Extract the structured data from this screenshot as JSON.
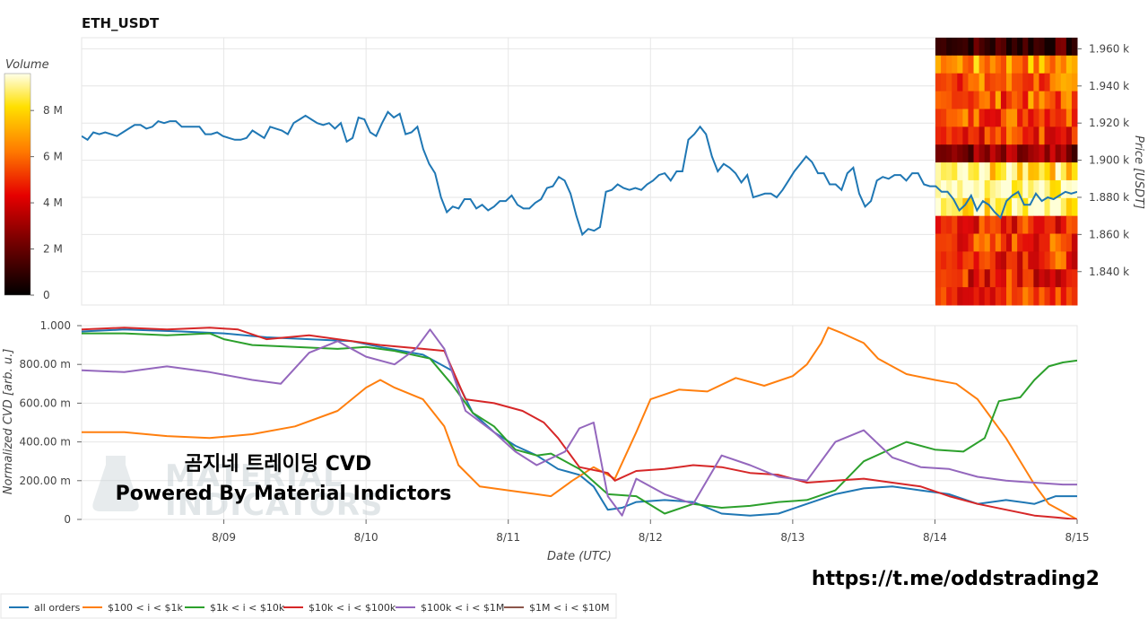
{
  "chart_data": {
    "title": "ETH_USDT",
    "colorbar": {
      "title": "Volume",
      "ticks": [
        "0",
        "2 M",
        "4 M",
        "6 M",
        "8 M"
      ],
      "tick_values": [
        0,
        2,
        4,
        6,
        8
      ],
      "max": 9.6
    },
    "price_panel": {
      "type": "line",
      "ylabel": "Price [USDT]",
      "ylim": [
        1.822,
        1.966
      ],
      "yticks": [
        "1.840 k",
        "1.860 k",
        "1.880 k",
        "1.900 k",
        "1.920 k",
        "1.940 k",
        "1.960 k"
      ],
      "ytick_values": [
        1.84,
        1.86,
        1.88,
        1.9,
        1.92,
        1.94,
        1.96
      ],
      "price": [
        1.913,
        1.911,
        1.915,
        1.914,
        1.915,
        1.914,
        1.913,
        1.915,
        1.917,
        1.919,
        1.919,
        1.917,
        1.918,
        1.921,
        1.92,
        1.921,
        1.921,
        1.918,
        1.918,
        1.918,
        1.918,
        1.914,
        1.914,
        1.915,
        1.913,
        1.912,
        1.911,
        1.911,
        1.912,
        1.916,
        1.914,
        1.912,
        1.918,
        1.917,
        1.916,
        1.914,
        1.92,
        1.922,
        1.924,
        1.922,
        1.92,
        1.919,
        1.92,
        1.917,
        1.92,
        1.91,
        1.912,
        1.923,
        1.922,
        1.915,
        1.913,
        1.92,
        1.926,
        1.923,
        1.925,
        1.914,
        1.915,
        1.918,
        1.906,
        1.898,
        1.893,
        1.88,
        1.872,
        1.875,
        1.874,
        1.879,
        1.879,
        1.874,
        1.876,
        1.873,
        1.875,
        1.878,
        1.878,
        1.881,
        1.876,
        1.874,
        1.874,
        1.877,
        1.879,
        1.885,
        1.886,
        1.891,
        1.889,
        1.882,
        1.87,
        1.86,
        1.863,
        1.862,
        1.864,
        1.883,
        1.884,
        1.887,
        1.885,
        1.884,
        1.885,
        1.884,
        1.887,
        1.889,
        1.892,
        1.893,
        1.889,
        1.894,
        1.894,
        1.911,
        1.914,
        1.918,
        1.914,
        1.902,
        1.894,
        1.898,
        1.896,
        1.893,
        1.888,
        1.892,
        1.88,
        1.881,
        1.882,
        1.882,
        1.88,
        1.884,
        1.889,
        1.894,
        1.898,
        1.902,
        1.899,
        1.893,
        1.893,
        1.887,
        1.887,
        1.884,
        1.893,
        1.896,
        1.882,
        1.875,
        1.878,
        1.889,
        1.891,
        1.89,
        1.892,
        1.892,
        1.889,
        1.893,
        1.893,
        1.887,
        1.886,
        1.886,
        1.883,
        1.883,
        1.879,
        1.873,
        1.876,
        1.881,
        1.873,
        1.878,
        1.876,
        1.872,
        1.869,
        1.878,
        1.881,
        1.883,
        1.876,
        1.876,
        1.882,
        1.878,
        1.88,
        1.879,
        1.881,
        1.883,
        1.882,
        1.883
      ]
    },
    "cvd_panel": {
      "type": "line",
      "ylabel": "Normalized CVD [arb. u.]",
      "xlabel": "Date (UTC)",
      "ylim": [
        0,
        1.0
      ],
      "yticks": [
        "0",
        "200.00 m",
        "400.00 m",
        "600.00 m",
        "800.00 m",
        "1.000"
      ],
      "ytick_values": [
        0,
        0.2,
        0.4,
        0.6,
        0.8,
        1.0
      ],
      "xlim": [
        0,
        7
      ],
      "xticks": [
        "8/09",
        "8/10",
        "8/11",
        "8/12",
        "8/13",
        "8/14",
        "8/15"
      ],
      "xtick_values": [
        1,
        2,
        3,
        4,
        5,
        6,
        7
      ],
      "series": [
        {
          "name": "all orders",
          "color": "#1f77b4",
          "points": [
            [
              0,
              0.97
            ],
            [
              0.3,
              0.98
            ],
            [
              0.7,
              0.97
            ],
            [
              1.0,
              0.96
            ],
            [
              1.3,
              0.94
            ],
            [
              1.6,
              0.93
            ],
            [
              1.9,
              0.92
            ],
            [
              2.1,
              0.89
            ],
            [
              2.4,
              0.85
            ],
            [
              2.6,
              0.77
            ],
            [
              2.75,
              0.55
            ],
            [
              2.9,
              0.45
            ],
            [
              3.05,
              0.38
            ],
            [
              3.2,
              0.33
            ],
            [
              3.35,
              0.26
            ],
            [
              3.5,
              0.23
            ],
            [
              3.6,
              0.17
            ],
            [
              3.7,
              0.05
            ],
            [
              3.8,
              0.06
            ],
            [
              3.9,
              0.09
            ],
            [
              4.1,
              0.1
            ],
            [
              4.3,
              0.09
            ],
            [
              4.5,
              0.03
            ],
            [
              4.7,
              0.02
            ],
            [
              4.9,
              0.03
            ],
            [
              5.1,
              0.08
            ],
            [
              5.3,
              0.13
            ],
            [
              5.5,
              0.16
            ],
            [
              5.7,
              0.17
            ],
            [
              5.9,
              0.15
            ],
            [
              6.1,
              0.13
            ],
            [
              6.3,
              0.08
            ],
            [
              6.5,
              0.1
            ],
            [
              6.7,
              0.08
            ],
            [
              6.85,
              0.12
            ],
            [
              7.0,
              0.12
            ]
          ]
        },
        {
          "name": "$100 < i < $1k",
          "color": "#ff7f0e",
          "points": [
            [
              0,
              0.45
            ],
            [
              0.3,
              0.45
            ],
            [
              0.6,
              0.43
            ],
            [
              0.9,
              0.42
            ],
            [
              1.2,
              0.44
            ],
            [
              1.5,
              0.48
            ],
            [
              1.8,
              0.56
            ],
            [
              2.0,
              0.68
            ],
            [
              2.1,
              0.72
            ],
            [
              2.2,
              0.68
            ],
            [
              2.4,
              0.62
            ],
            [
              2.55,
              0.48
            ],
            [
              2.65,
              0.28
            ],
            [
              2.8,
              0.17
            ],
            [
              3.0,
              0.15
            ],
            [
              3.2,
              0.13
            ],
            [
              3.3,
              0.12
            ],
            [
              3.45,
              0.2
            ],
            [
              3.6,
              0.27
            ],
            [
              3.75,
              0.21
            ],
            [
              3.9,
              0.45
            ],
            [
              4.0,
              0.62
            ],
            [
              4.2,
              0.67
            ],
            [
              4.4,
              0.66
            ],
            [
              4.6,
              0.73
            ],
            [
              4.8,
              0.69
            ],
            [
              5.0,
              0.74
            ],
            [
              5.1,
              0.8
            ],
            [
              5.2,
              0.91
            ],
            [
              5.25,
              0.99
            ],
            [
              5.35,
              0.96
            ],
            [
              5.5,
              0.91
            ],
            [
              5.6,
              0.83
            ],
            [
              5.8,
              0.75
            ],
            [
              6.0,
              0.72
            ],
            [
              6.15,
              0.7
            ],
            [
              6.3,
              0.62
            ],
            [
              6.5,
              0.42
            ],
            [
              6.7,
              0.18
            ],
            [
              6.8,
              0.08
            ],
            [
              7.0,
              0.0
            ]
          ]
        },
        {
          "name": "$1k < i < $10k",
          "color": "#2ca02c",
          "points": [
            [
              0,
              0.96
            ],
            [
              0.3,
              0.96
            ],
            [
              0.6,
              0.95
            ],
            [
              0.9,
              0.96
            ],
            [
              1.0,
              0.93
            ],
            [
              1.2,
              0.9
            ],
            [
              1.5,
              0.89
            ],
            [
              1.8,
              0.88
            ],
            [
              2.0,
              0.89
            ],
            [
              2.2,
              0.87
            ],
            [
              2.45,
              0.83
            ],
            [
              2.6,
              0.7
            ],
            [
              2.75,
              0.55
            ],
            [
              2.9,
              0.48
            ],
            [
              3.05,
              0.36
            ],
            [
              3.2,
              0.33
            ],
            [
              3.3,
              0.34
            ],
            [
              3.5,
              0.26
            ],
            [
              3.7,
              0.13
            ],
            [
              3.9,
              0.12
            ],
            [
              4.1,
              0.03
            ],
            [
              4.3,
              0.08
            ],
            [
              4.5,
              0.06
            ],
            [
              4.7,
              0.07
            ],
            [
              4.9,
              0.09
            ],
            [
              5.1,
              0.1
            ],
            [
              5.3,
              0.15
            ],
            [
              5.5,
              0.3
            ],
            [
              5.65,
              0.35
            ],
            [
              5.8,
              0.4
            ],
            [
              6.0,
              0.36
            ],
            [
              6.2,
              0.35
            ],
            [
              6.35,
              0.42
            ],
            [
              6.45,
              0.61
            ],
            [
              6.6,
              0.63
            ],
            [
              6.7,
              0.72
            ],
            [
              6.8,
              0.79
            ],
            [
              6.9,
              0.81
            ],
            [
              7.0,
              0.82
            ]
          ]
        },
        {
          "name": "$10k < i < $100k",
          "color": "#d62728",
          "points": [
            [
              0,
              0.98
            ],
            [
              0.3,
              0.99
            ],
            [
              0.6,
              0.98
            ],
            [
              0.9,
              0.99
            ],
            [
              1.1,
              0.98
            ],
            [
              1.3,
              0.93
            ],
            [
              1.6,
              0.95
            ],
            [
              1.9,
              0.92
            ],
            [
              2.1,
              0.9
            ],
            [
              2.4,
              0.88
            ],
            [
              2.55,
              0.87
            ],
            [
              2.7,
              0.62
            ],
            [
              2.9,
              0.6
            ],
            [
              3.1,
              0.56
            ],
            [
              3.25,
              0.5
            ],
            [
              3.35,
              0.42
            ],
            [
              3.5,
              0.27
            ],
            [
              3.7,
              0.24
            ],
            [
              3.75,
              0.2
            ],
            [
              3.9,
              0.25
            ],
            [
              4.1,
              0.26
            ],
            [
              4.3,
              0.28
            ],
            [
              4.5,
              0.27
            ],
            [
              4.7,
              0.24
            ],
            [
              4.9,
              0.23
            ],
            [
              5.1,
              0.19
            ],
            [
              5.3,
              0.2
            ],
            [
              5.5,
              0.21
            ],
            [
              5.7,
              0.19
            ],
            [
              5.9,
              0.17
            ],
            [
              6.1,
              0.12
            ],
            [
              6.3,
              0.08
            ],
            [
              6.5,
              0.05
            ],
            [
              6.7,
              0.02
            ],
            [
              6.85,
              0.01
            ],
            [
              7.0,
              0.0
            ]
          ]
        },
        {
          "name": "$100k < i < $1M",
          "color": "#9467bd",
          "points": [
            [
              0,
              0.77
            ],
            [
              0.3,
              0.76
            ],
            [
              0.6,
              0.79
            ],
            [
              0.9,
              0.76
            ],
            [
              1.2,
              0.72
            ],
            [
              1.4,
              0.7
            ],
            [
              1.6,
              0.86
            ],
            [
              1.8,
              0.92
            ],
            [
              2.0,
              0.84
            ],
            [
              2.2,
              0.8
            ],
            [
              2.35,
              0.88
            ],
            [
              2.45,
              0.98
            ],
            [
              2.55,
              0.88
            ],
            [
              2.7,
              0.56
            ],
            [
              2.9,
              0.45
            ],
            [
              3.05,
              0.35
            ],
            [
              3.2,
              0.28
            ],
            [
              3.4,
              0.35
            ],
            [
              3.5,
              0.47
            ],
            [
              3.6,
              0.5
            ],
            [
              3.7,
              0.12
            ],
            [
              3.8,
              0.02
            ],
            [
              3.9,
              0.21
            ],
            [
              4.1,
              0.13
            ],
            [
              4.3,
              0.08
            ],
            [
              4.5,
              0.33
            ],
            [
              4.7,
              0.28
            ],
            [
              4.9,
              0.22
            ],
            [
              5.1,
              0.2
            ],
            [
              5.3,
              0.4
            ],
            [
              5.5,
              0.46
            ],
            [
              5.7,
              0.32
            ],
            [
              5.9,
              0.27
            ],
            [
              6.1,
              0.26
            ],
            [
              6.3,
              0.22
            ],
            [
              6.5,
              0.2
            ],
            [
              6.7,
              0.19
            ],
            [
              6.9,
              0.18
            ],
            [
              7.0,
              0.18
            ]
          ]
        },
        {
          "name": "$1M < i < $10M",
          "color": "#8c564b",
          "points": []
        }
      ]
    },
    "heatmap": {
      "type": "heatmap",
      "description": "order book volume heatmap over price",
      "rows": [
        0.1,
        0.7,
        0.6,
        0.6,
        0.6,
        0.55,
        0.25,
        0.9,
        1.0,
        0.95,
        0.5,
        0.55,
        0.55,
        0.5,
        0.55
      ]
    },
    "legend": [
      "all orders",
      "$100 < i < $1k",
      "$1k < i < $10k",
      "$10k < i < $100k",
      "$100k < i < $1M",
      "$1M < i < $10M"
    ]
  },
  "watermark": {
    "line1": "곰지네 트레이딩 CVD",
    "line2": "Powered By Material Indictors",
    "logo_line1": "MATERIAL",
    "logo_line2": "INDICATORS"
  },
  "footer_url": "https://t.me/oddstrading2"
}
